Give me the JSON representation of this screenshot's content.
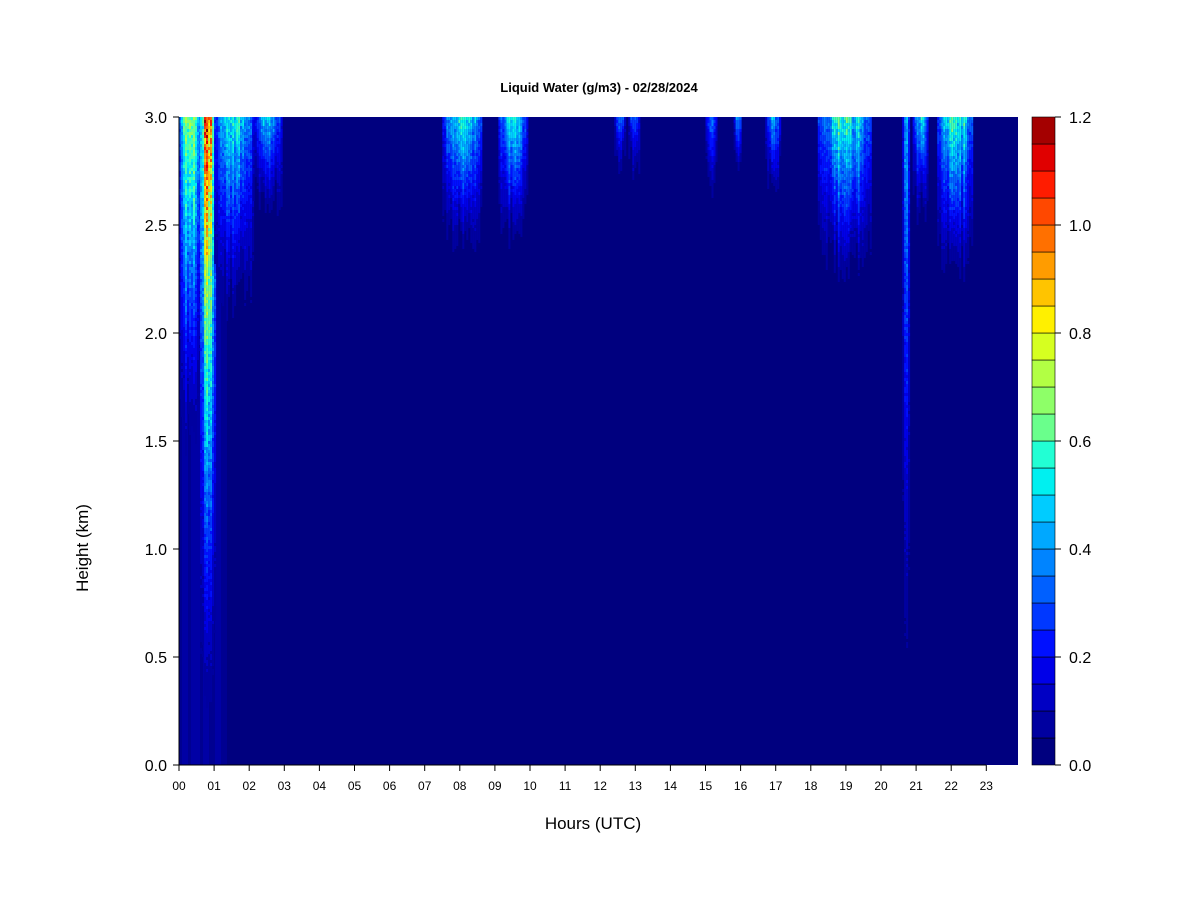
{
  "chart_data": {
    "type": "heatmap",
    "title": "Liquid Water (g/m3) - 02/28/2024",
    "xlabel": "Hours (UTC)",
    "ylabel": "Height (km)",
    "x_ticks": [
      "00",
      "01",
      "02",
      "03",
      "04",
      "05",
      "06",
      "07",
      "08",
      "09",
      "10",
      "11",
      "12",
      "13",
      "14",
      "15",
      "16",
      "17",
      "18",
      "19",
      "20",
      "21",
      "22",
      "23"
    ],
    "xlim": [
      0,
      24
    ],
    "y_ticks": [
      "0.0",
      "0.5",
      "1.0",
      "1.5",
      "2.0",
      "2.5",
      "3.0"
    ],
    "ylim": [
      0,
      3
    ],
    "colorbar": {
      "ticks": [
        "0.0",
        "0.2",
        "0.4",
        "0.6",
        "0.8",
        "1.0",
        "1.2"
      ],
      "range": [
        0,
        1.2
      ],
      "levels": 24,
      "colors": [
        "#00007f",
        "#0000a0",
        "#0000c4",
        "#0000e8",
        "#0010ff",
        "#0038ff",
        "#0060ff",
        "#0084ff",
        "#00a8ff",
        "#00ccff",
        "#00f0f0",
        "#22ffd4",
        "#48ffae",
        "#6aff8c",
        "#8eff68",
        "#b2ff44",
        "#d6ff20",
        "#fff000",
        "#ffc400",
        "#ff9c00",
        "#ff7000",
        "#ff4800",
        "#ff1c00",
        "#e00000",
        "#a40000",
        "#800000"
      ]
    },
    "cloud_events": [
      {
        "start": 0.0,
        "end": 0.6,
        "base_km": 1.3,
        "peak": 0.85
      },
      {
        "start": 0.6,
        "end": 1.0,
        "base_km": 0.0,
        "peak": 1.2
      },
      {
        "start": 1.0,
        "end": 2.1,
        "base_km": 2.0,
        "peak": 0.65
      },
      {
        "start": 2.1,
        "end": 2.9,
        "base_km": 2.5,
        "peak": 0.55
      },
      {
        "start": 7.5,
        "end": 8.6,
        "base_km": 2.35,
        "peak": 0.7
      },
      {
        "start": 9.1,
        "end": 9.9,
        "base_km": 2.4,
        "peak": 0.6
      },
      {
        "start": 12.4,
        "end": 12.7,
        "base_km": 2.7,
        "peak": 0.4
      },
      {
        "start": 12.8,
        "end": 13.1,
        "base_km": 2.7,
        "peak": 0.4
      },
      {
        "start": 15.0,
        "end": 15.3,
        "base_km": 2.6,
        "peak": 0.45
      },
      {
        "start": 15.8,
        "end": 16.0,
        "base_km": 2.7,
        "peak": 0.45
      },
      {
        "start": 16.7,
        "end": 17.1,
        "base_km": 2.6,
        "peak": 0.5
      },
      {
        "start": 18.2,
        "end": 19.7,
        "base_km": 2.2,
        "peak": 0.7
      },
      {
        "start": 20.6,
        "end": 20.8,
        "base_km": 0.0,
        "peak": 0.5
      },
      {
        "start": 20.9,
        "end": 21.3,
        "base_km": 2.5,
        "peak": 0.6
      },
      {
        "start": 21.6,
        "end": 22.6,
        "base_km": 2.2,
        "peak": 0.7
      }
    ]
  }
}
